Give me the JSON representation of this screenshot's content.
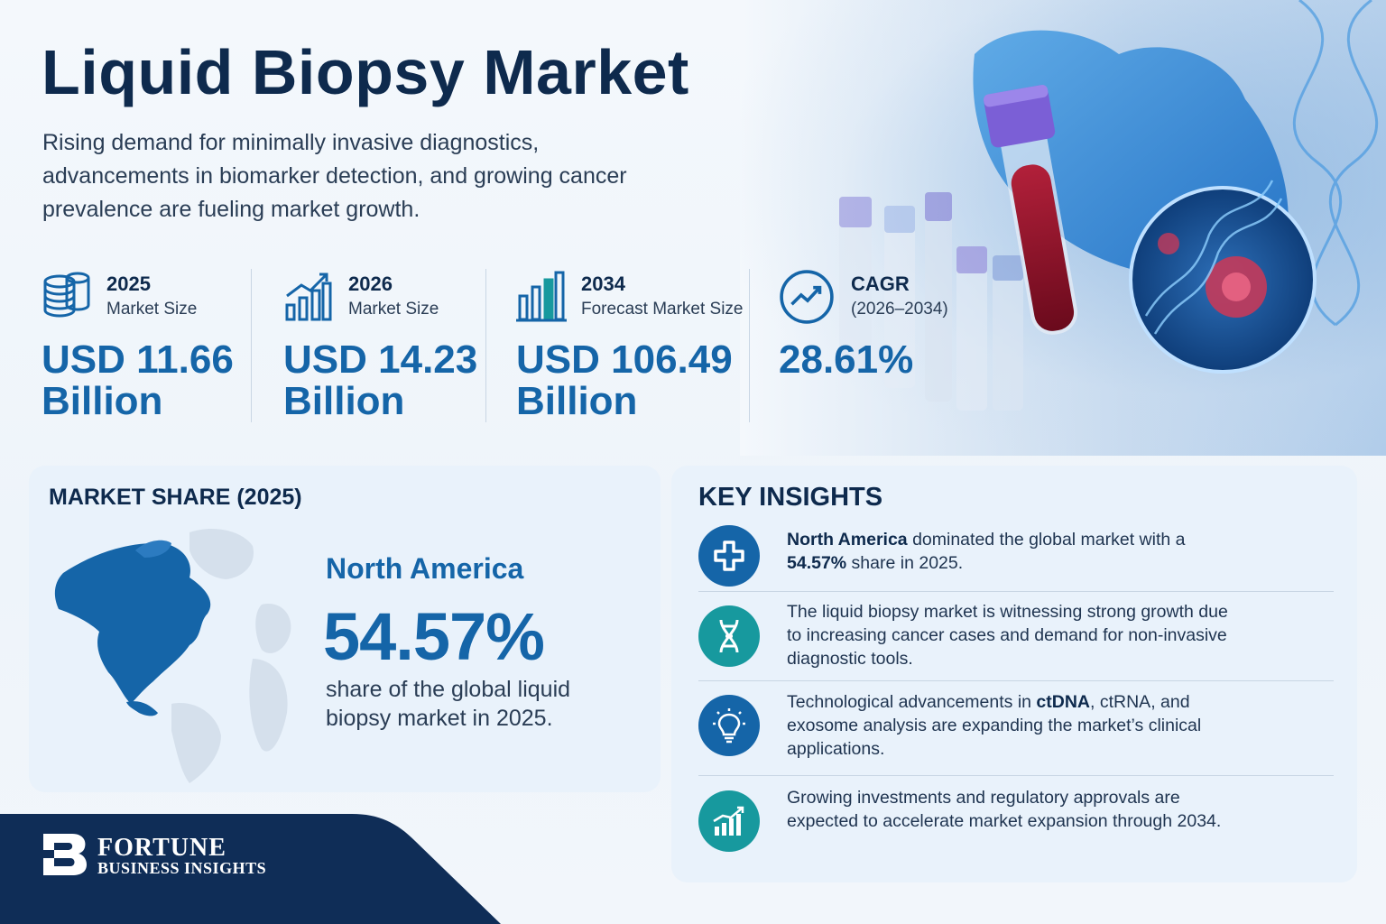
{
  "header": {
    "title": "Liquid Biopsy Market",
    "subtitle": "Rising demand for minimally invasive diagnostics, advancements in biomarker detection, and growing cancer prevalence are fueling market growth."
  },
  "stats": [
    {
      "year": "2025",
      "label": "Market Size",
      "value_line1": "USD 11.66",
      "value_line2": "Billion",
      "icon": "coins-stack-icon"
    },
    {
      "year": "2026",
      "label": "Market Size",
      "value_line1": "USD 14.23",
      "value_line2": "Billion",
      "icon": "bar-chart-up-icon"
    },
    {
      "year": "2034",
      "label": "Forecast Market Size",
      "value_line1": "USD 106.49",
      "value_line2": "Billion",
      "icon": "bar-chart-icon"
    },
    {
      "year": "CAGR",
      "label": "(2026–2034)",
      "value_line1": "28.61%",
      "value_line2": "",
      "icon": "trend-circle-icon"
    }
  ],
  "market_share": {
    "title": "MARKET SHARE (2025)",
    "region": "North America",
    "percent": "54.57%",
    "description": "share of the global liquid biopsy market in 2025."
  },
  "key_insights": {
    "title": "KEY INSIGHTS",
    "items": [
      {
        "icon": "medical-cross-icon",
        "bold_prefix": "North America",
        "text_a": " dominated the global market with a ",
        "bold_mid": "54.57%",
        "text_b": " share in 2025."
      },
      {
        "icon": "dna-icon",
        "text": "The liquid biopsy market is witnessing strong growth due to increasing cancer cases and demand for non-invasive diagnostic tools."
      },
      {
        "icon": "lightbulb-icon",
        "text_a": "Technological advancements in ",
        "bold_mid": "ctDNA",
        "text_b": ", ctRNA, and exosome analysis are expanding the market’s clinical applications."
      },
      {
        "icon": "growth-chart-icon",
        "text": "Growing investments and regulatory approvals are expected to accelerate market expansion through 2034."
      }
    ]
  },
  "brand": {
    "name_line1": "FORTUNE",
    "name_line2": "BUSINESS INSIGHTS"
  },
  "colors": {
    "navy": "#0e2a4d",
    "accent_blue": "#1565a8",
    "teal": "#17999e"
  }
}
